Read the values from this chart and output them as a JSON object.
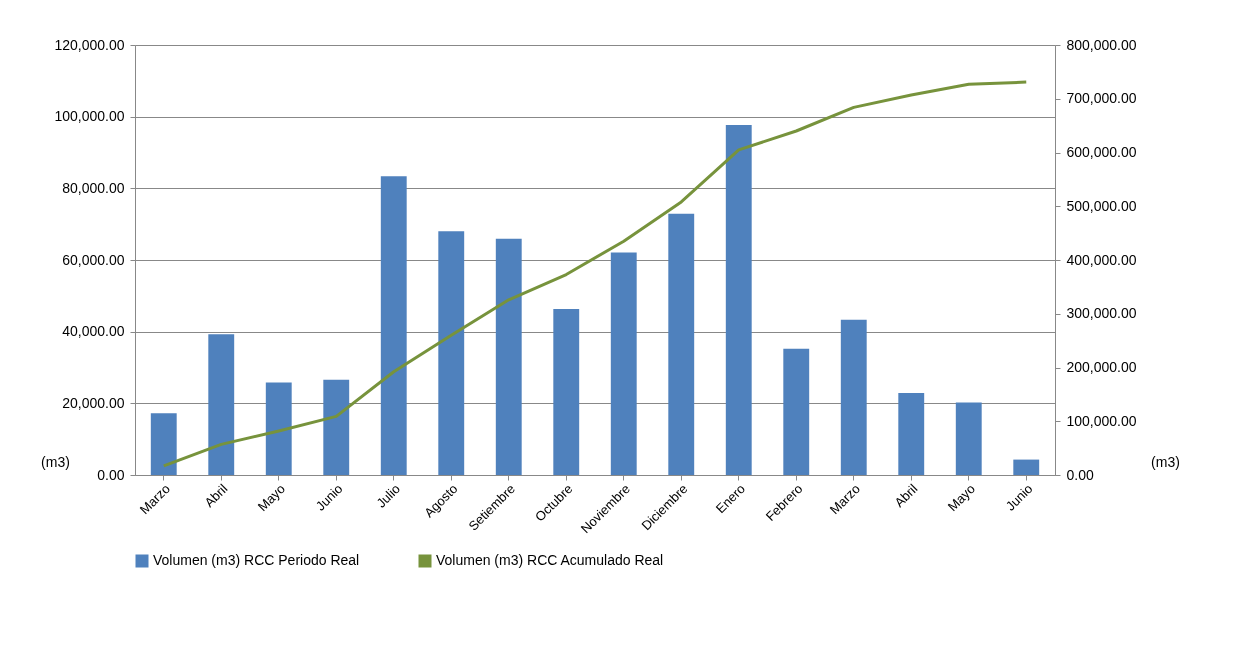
{
  "chart_data": {
    "type": "bar",
    "categories": [
      "Marzo",
      "Abril",
      "Mayo",
      "Junio",
      "Julio",
      "Agosto",
      "Setiembre",
      "Octubre",
      "Noviembre",
      "Diciembre",
      "Enero",
      "Febrero",
      "Marzo",
      "Abril",
      "Mayo",
      "Junio"
    ],
    "ylabel": "(m3)",
    "y2label": "(m3)",
    "series": [
      {
        "name": "Volumen (m3) RCC  Periodo Real",
        "color": "#4f81bd",
        "values": [
          17200,
          39300,
          25800,
          26600,
          83400,
          68000,
          65900,
          46300,
          62100,
          72900,
          97700,
          35200,
          43300,
          22900,
          20200,
          4300
        ]
      },
      {
        "name": "Volumen (m3) RCC  Acumulado Real",
        "type": "line",
        "axis": "y2",
        "color": "#77933c",
        "values": [
          17000,
          57000,
          82000,
          109000,
          192000,
          260000,
          326000,
          373000,
          435000,
          508000,
          605000,
          640000,
          684000,
          707000,
          727000,
          731000
        ]
      }
    ],
    "ylim": [
      0,
      120000
    ],
    "yticks": [
      {
        "value": 0,
        "label": "0.00"
      },
      {
        "value": 20000,
        "label": "20,000.00"
      },
      {
        "value": 40000,
        "label": "40,000.00"
      },
      {
        "value": 60000,
        "label": "60,000.00"
      },
      {
        "value": 80000,
        "label": "80,000.00"
      },
      {
        "value": 100000,
        "label": "100,000.00"
      },
      {
        "value": 120000,
        "label": "120,000.00"
      }
    ],
    "y2lim": [
      0,
      800000
    ],
    "y2ticks": [
      {
        "value": 0,
        "label": "0.00"
      },
      {
        "value": 100000,
        "label": "100,000.00"
      },
      {
        "value": 200000,
        "label": "200,000.00"
      },
      {
        "value": 300000,
        "label": "300,000.00"
      },
      {
        "value": 400000,
        "label": "400,000.00"
      },
      {
        "value": 500000,
        "label": "500,000.00"
      },
      {
        "value": 600000,
        "label": "600,000.00"
      },
      {
        "value": 700000,
        "label": "700,000.00"
      },
      {
        "value": 800000,
        "label": "800,000.00"
      }
    ],
    "grid": "y",
    "legend": "bottom"
  }
}
